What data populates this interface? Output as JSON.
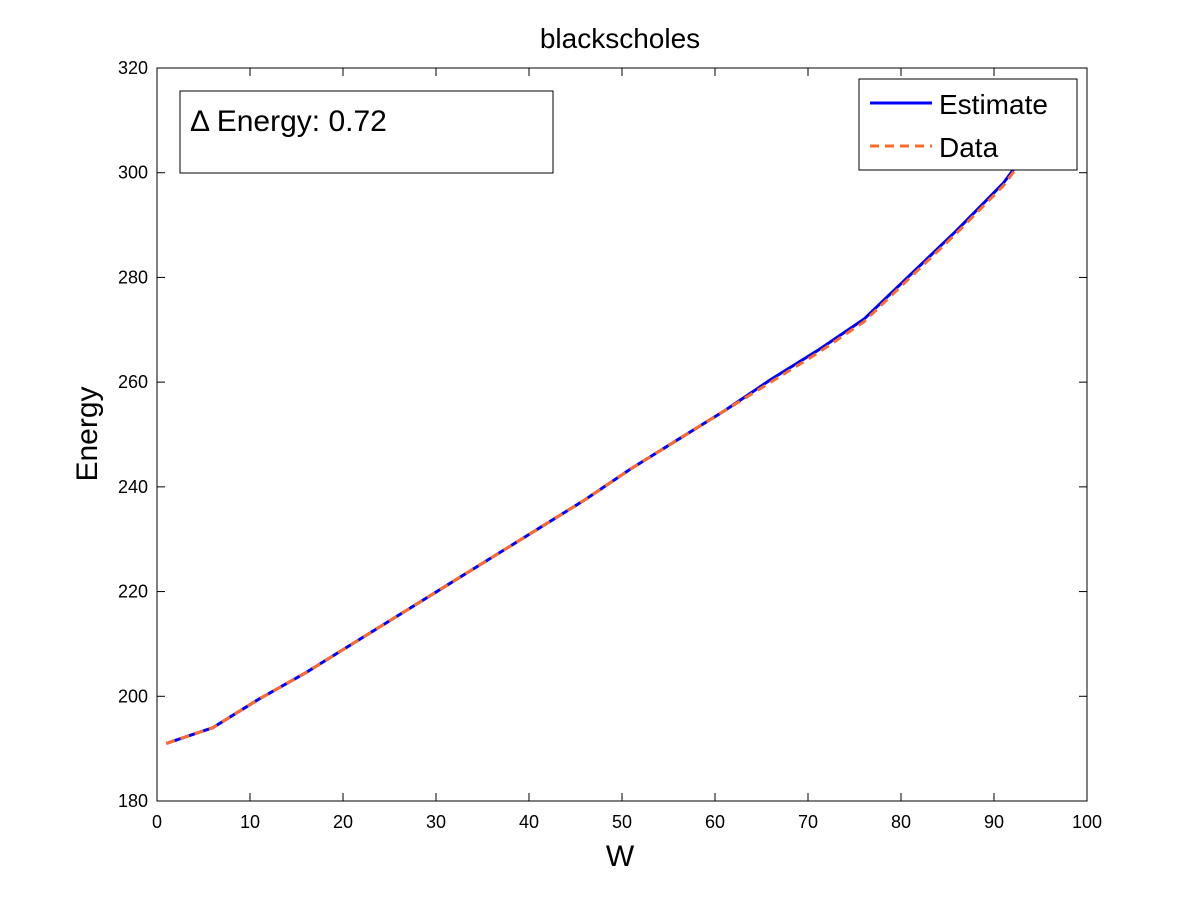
{
  "chart_data": {
    "type": "line",
    "title": "blackscholes",
    "xlabel": "W",
    "ylabel": "Energy",
    "xlim": [
      0,
      100
    ],
    "ylim": [
      180,
      320
    ],
    "xticks": [
      0,
      10,
      20,
      30,
      40,
      50,
      60,
      70,
      80,
      90,
      100
    ],
    "yticks": [
      180,
      200,
      220,
      240,
      260,
      280,
      300,
      320
    ],
    "grid": false,
    "legend_position": "top-right",
    "annotation": "Δ Energy: 0.72",
    "series": [
      {
        "name": "Estimate",
        "color": "#0000ff",
        "style": "solid",
        "x": [
          1,
          6,
          11,
          16,
          21,
          26,
          31,
          36,
          41,
          46,
          51,
          56,
          61,
          66,
          71,
          76,
          81,
          86,
          91,
          93.5
        ],
        "y": [
          191,
          194,
          199.5,
          204.5,
          210,
          215.5,
          221,
          226.5,
          232,
          237.5,
          243.5,
          249,
          254.5,
          260.5,
          266,
          272,
          280.5,
          289,
          298,
          304
        ]
      },
      {
        "name": "Data",
        "color": "#ff6a2a",
        "style": "dashed",
        "x": [
          1,
          6,
          11,
          16,
          21,
          26,
          31,
          36,
          41,
          46,
          51,
          56,
          61,
          66,
          71,
          76,
          81,
          86,
          91,
          93.5
        ],
        "y": [
          191,
          194,
          199.5,
          204.5,
          210,
          215.5,
          221,
          226.5,
          232,
          237.5,
          243.5,
          249,
          254.5,
          260,
          265.5,
          271.5,
          280,
          288.5,
          297.5,
          303.5
        ]
      }
    ]
  }
}
